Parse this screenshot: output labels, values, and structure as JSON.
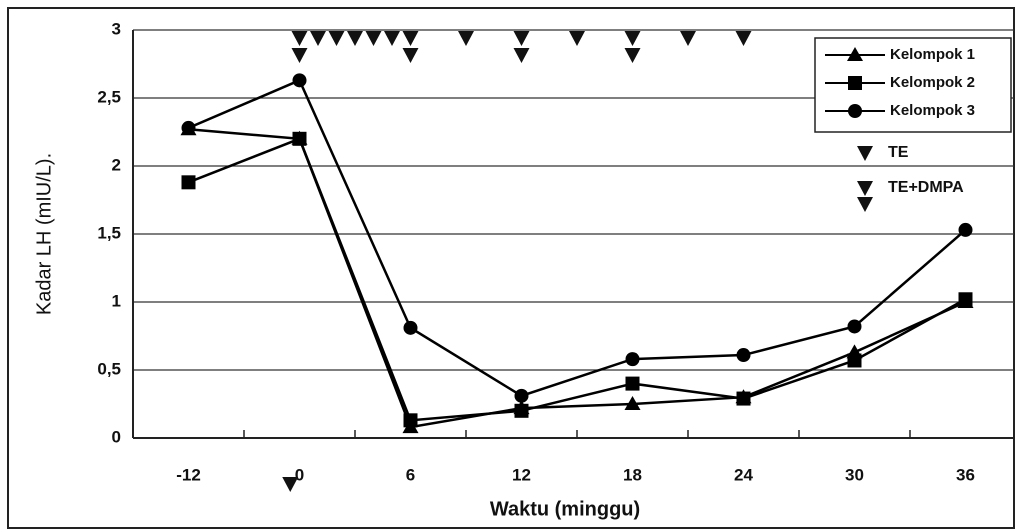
{
  "chart_data": {
    "type": "line",
    "x_label": "Waktu (minggu)",
    "y_label": "Kadar LH (mIU/L).",
    "categories": [
      "-12",
      "0",
      "6",
      "12",
      "18",
      "24",
      "30",
      "36"
    ],
    "series": [
      {
        "name": "Kelompok 1",
        "color": "#000000",
        "marker": "triangle",
        "values": [
          2.27,
          2.2,
          0.08,
          0.22,
          0.25,
          0.3,
          0.63,
          1.0
        ]
      },
      {
        "name": "Kelompok 2",
        "color": "#000000",
        "marker": "square",
        "values": [
          1.88,
          2.2,
          0.13,
          0.2,
          0.4,
          0.29,
          0.57,
          1.02
        ]
      },
      {
        "name": "Kelompok 3",
        "color": "#000000",
        "marker": "circle",
        "values": [
          2.28,
          2.63,
          0.81,
          0.31,
          0.58,
          0.61,
          0.82,
          1.53
        ]
      }
    ],
    "treatments": [
      {
        "name": "TE",
        "weeks": [
          1,
          2,
          3,
          4,
          5,
          9,
          15,
          21,
          24
        ]
      },
      {
        "name": "TE+DMPA",
        "weeks": [
          0,
          6,
          12,
          18
        ]
      }
    ],
    "pre_treatment": {
      "weeks": [
        -1
      ]
    },
    "ylim": [
      0,
      3
    ],
    "yticks": [
      0,
      {
        "value": 0.5,
        "label": "0,5"
      },
      1,
      {
        "value": 1.5,
        "label": "1,5"
      },
      2,
      {
        "value": 2.5,
        "label": "2,5"
      },
      3
    ],
    "grid": true
  }
}
